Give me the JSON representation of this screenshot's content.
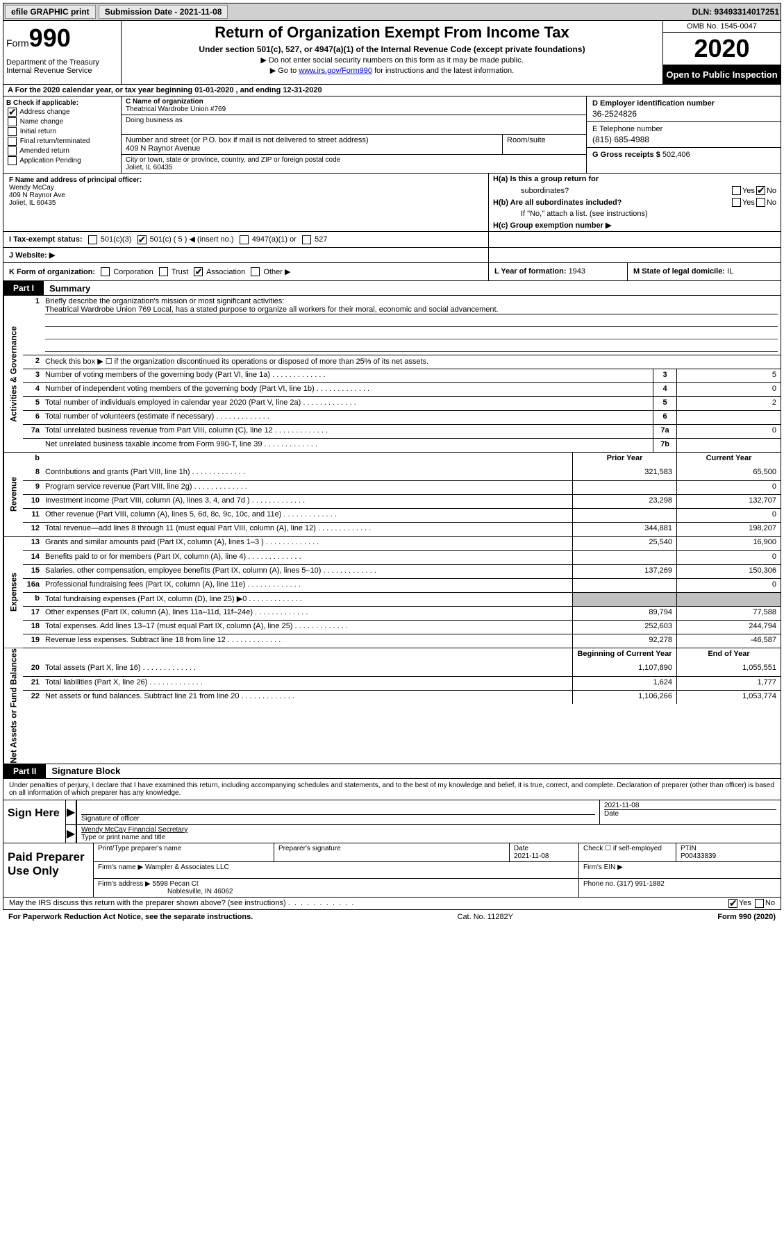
{
  "topbar": {
    "efile": "efile GRAPHIC print",
    "submission_label": "Submission Date - 2021-11-08",
    "dln": "DLN: 93493314017251"
  },
  "header": {
    "form_word": "Form",
    "form_num": "990",
    "dept": "Department of the Treasury\nInternal Revenue Service",
    "title": "Return of Organization Exempt From Income Tax",
    "subtitle": "Under section 501(c), 527, or 4947(a)(1) of the Internal Revenue Code (except private foundations)",
    "instr1": "▶ Do not enter social security numbers on this form as it may be made public.",
    "instr2_pre": "▶ Go to ",
    "instr2_link": "www.irs.gov/Form990",
    "instr2_post": " for instructions and the latest information.",
    "omb": "OMB No. 1545-0047",
    "year": "2020",
    "inspect": "Open to Public Inspection"
  },
  "row_a": "A For the 2020 calendar year, or tax year beginning 01-01-2020   , and ending 12-31-2020",
  "section_b": {
    "label": "B Check if applicable:",
    "address_change": "Address change",
    "name_change": "Name change",
    "initial_return": "Initial return",
    "final_return": "Final return/terminated",
    "amended_return": "Amended return",
    "application_pending": "Application Pending"
  },
  "section_c": {
    "name_label": "C Name of organization",
    "name": "Theatrical Wardrobe Union #769",
    "dba_label": "Doing business as",
    "dba": "",
    "street_label": "Number and street (or P.O. box if mail is not delivered to street address)",
    "street": "409 N Raynor Avenue",
    "room_label": "Room/suite",
    "city_label": "City or town, state or province, country, and ZIP or foreign postal code",
    "city": "Joliet, IL  60435"
  },
  "section_d": {
    "ein_label": "D Employer identification number",
    "ein": "36-2524826",
    "phone_label": "E Telephone number",
    "phone": "(815) 685-4988",
    "gross_label": "G Gross receipts $ ",
    "gross": "502,406"
  },
  "section_f": {
    "label": "F Name and address of principal officer:",
    "name": "Wendy McCay",
    "addr1": "409 N Raynor Ave",
    "addr2": "Joliet, IL  60435"
  },
  "section_h": {
    "ha_label": "H(a)  Is this a group return for",
    "ha_sub": "subordinates?",
    "hb_label": "H(b)  Are all subordinates included?",
    "hb_note": "If \"No,\" attach a list. (see instructions)",
    "hc_label": "H(c)  Group exemption number ▶"
  },
  "row_i": {
    "label": "I    Tax-exempt status:",
    "opt1": "501(c)(3)",
    "opt2": "501(c) ( 5 ) ◀ (insert no.)",
    "opt3": "4947(a)(1) or",
    "opt4": "527"
  },
  "row_j": "J   Website: ▶",
  "row_k": {
    "label": "K Form of organization:",
    "corp": "Corporation",
    "trust": "Trust",
    "assoc": "Association",
    "other": "Other ▶",
    "l_label": "L Year of formation: ",
    "l_val": "1943",
    "m_label": "M State of legal domicile: ",
    "m_val": "IL"
  },
  "part1": {
    "header": "Part I",
    "title": "Summary"
  },
  "governance": {
    "label": "Activities & Governance",
    "line1_label": "Briefly describe the organization's mission or most significant activities:",
    "line1_text": "Theatrical Wardrobe Union 769 Local, has a stated purpose to organize all workers for their moral, economic and social advancement.",
    "line2": "Check this box ▶ ☐  if the organization discontinued its operations or disposed of more than 25% of its net assets.",
    "line3": "Number of voting members of the governing body (Part VI, line 1a)",
    "line3_val": "5",
    "line4": "Number of independent voting members of the governing body (Part VI, line 1b)",
    "line4_val": "0",
    "line5": "Total number of individuals employed in calendar year 2020 (Part V, line 2a)",
    "line5_val": "2",
    "line6": "Total number of volunteers (estimate if necessary)",
    "line6_val": "",
    "line7a": "Total unrelated business revenue from Part VIII, column (C), line 12",
    "line7a_val": "0",
    "line7b": "Net unrelated business taxable income from Form 990-T, line 39",
    "line7b_val": ""
  },
  "revenue": {
    "label": "Revenue",
    "prior_header": "Prior Year",
    "current_header": "Current Year",
    "lines": [
      {
        "num": "8",
        "desc": "Contributions and grants (Part VIII, line 1h)",
        "prior": "321,583",
        "current": "65,500"
      },
      {
        "num": "9",
        "desc": "Program service revenue (Part VIII, line 2g)",
        "prior": "",
        "current": "0"
      },
      {
        "num": "10",
        "desc": "Investment income (Part VIII, column (A), lines 3, 4, and 7d )",
        "prior": "23,298",
        "current": "132,707"
      },
      {
        "num": "11",
        "desc": "Other revenue (Part VIII, column (A), lines 5, 6d, 8c, 9c, 10c, and 11e)",
        "prior": "",
        "current": "0"
      },
      {
        "num": "12",
        "desc": "Total revenue—add lines 8 through 11 (must equal Part VIII, column (A), line 12)",
        "prior": "344,881",
        "current": "198,207"
      }
    ]
  },
  "expenses": {
    "label": "Expenses",
    "lines": [
      {
        "num": "13",
        "desc": "Grants and similar amounts paid (Part IX, column (A), lines 1–3 )",
        "prior": "25,540",
        "current": "16,900"
      },
      {
        "num": "14",
        "desc": "Benefits paid to or for members (Part IX, column (A), line 4)",
        "prior": "",
        "current": "0"
      },
      {
        "num": "15",
        "desc": "Salaries, other compensation, employee benefits (Part IX, column (A), lines 5–10)",
        "prior": "137,269",
        "current": "150,306"
      },
      {
        "num": "16a",
        "desc": "Professional fundraising fees (Part IX, column (A), line 11e)",
        "prior": "",
        "current": "0"
      },
      {
        "num": "b",
        "desc": "Total fundraising expenses (Part IX, column (D), line 25) ▶0",
        "prior": "SHADED",
        "current": "SHADED"
      },
      {
        "num": "17",
        "desc": "Other expenses (Part IX, column (A), lines 11a–11d, 11f–24e)",
        "prior": "89,794",
        "current": "77,588"
      },
      {
        "num": "18",
        "desc": "Total expenses. Add lines 13–17 (must equal Part IX, column (A), line 25)",
        "prior": "252,603",
        "current": "244,794"
      },
      {
        "num": "19",
        "desc": "Revenue less expenses. Subtract line 18 from line 12",
        "prior": "92,278",
        "current": "-46,587"
      }
    ]
  },
  "netassets": {
    "label": "Net Assets or Fund Balances",
    "begin_header": "Beginning of Current Year",
    "end_header": "End of Year",
    "lines": [
      {
        "num": "20",
        "desc": "Total assets (Part X, line 16)",
        "prior": "1,107,890",
        "current": "1,055,551"
      },
      {
        "num": "21",
        "desc": "Total liabilities (Part X, line 26)",
        "prior": "1,624",
        "current": "1,777"
      },
      {
        "num": "22",
        "desc": "Net assets or fund balances. Subtract line 21 from line 20",
        "prior": "1,106,266",
        "current": "1,053,774"
      }
    ]
  },
  "part2": {
    "header": "Part II",
    "title": "Signature Block",
    "perjury": "Under penalties of perjury, I declare that I have examined this return, including accompanying schedules and statements, and to the best of my knowledge and belief, it is true, correct, and complete. Declaration of preparer (other than officer) is based on all information of which preparer has any knowledge."
  },
  "sign": {
    "label": "Sign Here",
    "sig_officer": "Signature of officer",
    "date": "2021-11-08",
    "date_label": "Date",
    "name": "Wendy McCay  Financial Secretary",
    "name_label": "Type or print name and title"
  },
  "preparer": {
    "label": "Paid Preparer Use Only",
    "print_label": "Print/Type preparer's name",
    "sig_label": "Preparer's signature",
    "date_label": "Date",
    "date": "2021-11-08",
    "check_label": "Check ☐ if self-employed",
    "ptin_label": "PTIN",
    "ptin": "P00433839",
    "firm_name_label": "Firm's name    ▶ ",
    "firm_name": "Wampler & Associates LLC",
    "firm_ein_label": "Firm's EIN ▶",
    "firm_addr_label": "Firm's address ▶ ",
    "firm_addr": "5598 Pecan Ct",
    "firm_city": "Noblesville, IN  46062",
    "phone_label": "Phone no. ",
    "phone": "(317) 991-1882"
  },
  "footer": {
    "discuss": "May the IRS discuss this return with the preparer shown above? (see instructions)",
    "paperwork": "For Paperwork Reduction Act Notice, see the separate instructions.",
    "catno": "Cat. No. 11282Y",
    "formno": "Form 990 (2020)"
  }
}
